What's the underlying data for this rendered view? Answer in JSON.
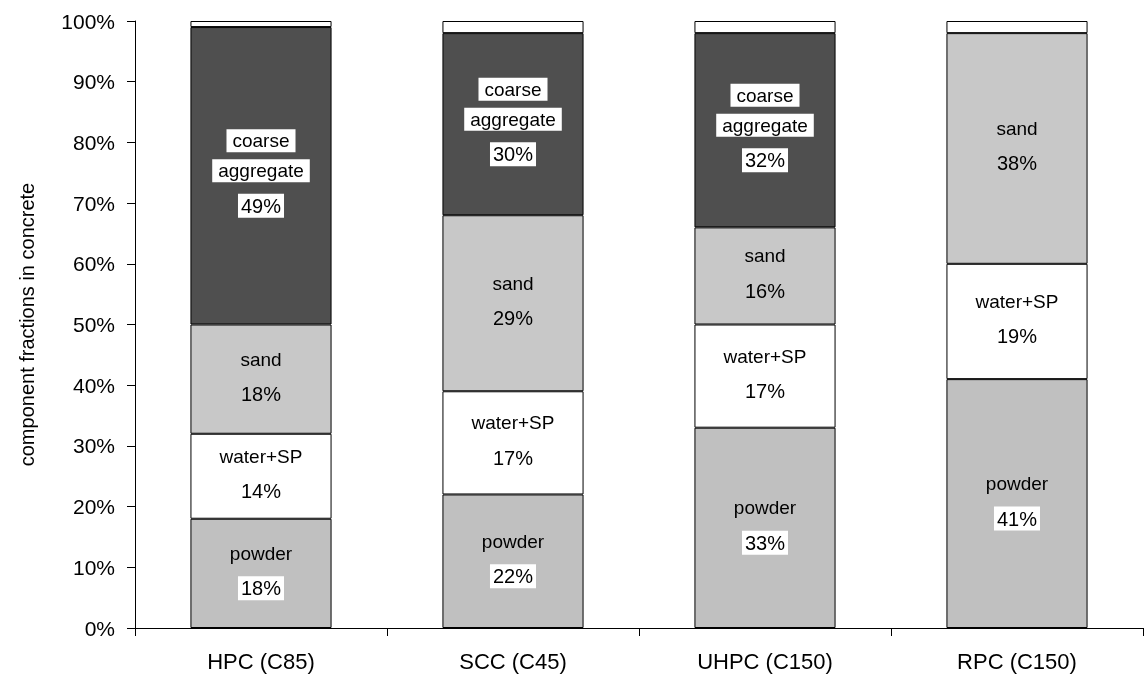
{
  "chart_data": {
    "type": "bar",
    "stacked": true,
    "ylabel": "component fractions in concrete",
    "categories": [
      "HPC (C85)",
      "SCC (C45)",
      "UHPC (C150)",
      "RPC (C150)"
    ],
    "series": [
      {
        "name": "powder",
        "color": "#c0c0c0",
        "values": [
          18,
          22,
          33,
          41
        ],
        "value_labels": [
          "18%",
          "22%",
          "33%",
          "41%"
        ]
      },
      {
        "name": "water+SP",
        "color": "#ffffff",
        "values": [
          14,
          17,
          17,
          19
        ],
        "value_labels": [
          "14%",
          "17%",
          "17%",
          "19%"
        ]
      },
      {
        "name": "sand",
        "color": "#c8c8c8",
        "values": [
          18,
          29,
          16,
          38
        ],
        "value_labels": [
          "18%",
          "29%",
          "16%",
          "38%"
        ]
      },
      {
        "name": "coarse aggregate",
        "color": "#4f4f4f",
        "values": [
          49,
          30,
          32,
          null
        ],
        "value_labels": [
          "49%",
          "30%",
          "32%",
          null
        ]
      },
      {
        "color": "#ffffff",
        "values": [
          1,
          2,
          2,
          2
        ]
      }
    ],
    "ylim": [
      0,
      100
    ],
    "yticks": [
      {
        "value": 0,
        "label": "0%"
      },
      {
        "value": 10,
        "label": "10%"
      },
      {
        "value": 20,
        "label": "20%"
      },
      {
        "value": 30,
        "label": "30%"
      },
      {
        "value": 40,
        "label": "40%"
      },
      {
        "value": 50,
        "label": "50%"
      },
      {
        "value": 60,
        "label": "60%"
      },
      {
        "value": 70,
        "label": "70%"
      },
      {
        "value": 80,
        "label": "80%"
      },
      {
        "value": 90,
        "label": "90%"
      },
      {
        "value": 100,
        "label": "100%"
      }
    ]
  }
}
